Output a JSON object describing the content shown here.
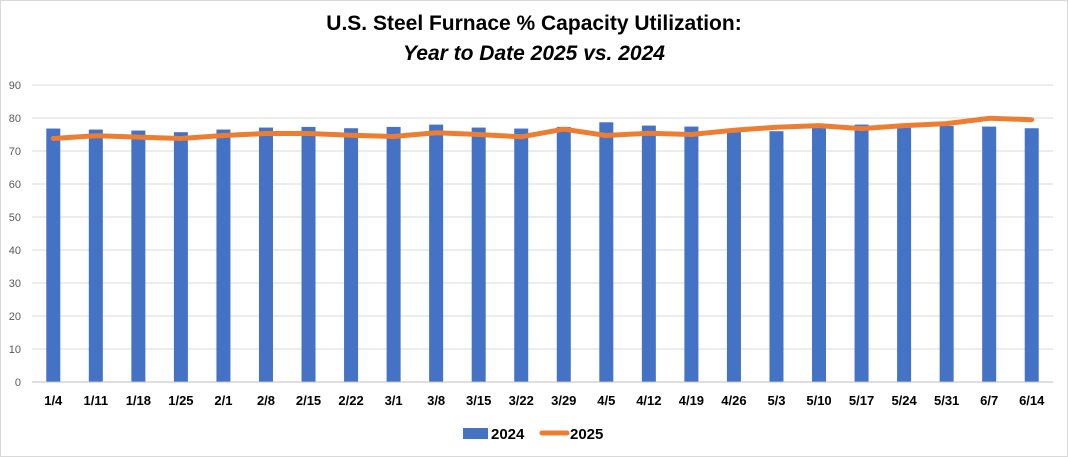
{
  "chart_data": {
    "type": "bar",
    "title": "U.S. Steel Furnace % Capacity Utilization:",
    "subtitle": "Year to Date 2025 vs. 2024",
    "xlabel": "",
    "ylabel": "",
    "ylim": [
      0,
      90
    ],
    "yticks": [
      "0",
      "10",
      "20",
      "30",
      "40",
      "50",
      "60",
      "70",
      "80",
      "90"
    ],
    "grid": true,
    "legend": "bottom",
    "categories": [
      "1/4",
      "1/11",
      "1/18",
      "1/25",
      "2/1",
      "2/8",
      "2/15",
      "2/22",
      "3/1",
      "3/8",
      "3/15",
      "3/22",
      "3/29",
      "4/5",
      "4/12",
      "4/19",
      "4/26",
      "5/3",
      "5/10",
      "5/17",
      "5/24",
      "5/31",
      "6/7",
      "6/14"
    ],
    "series": [
      {
        "name": "2024",
        "kind": "bar",
        "color": "#4472c4",
        "values": [
          76.8,
          76.5,
          76.2,
          75.7,
          76.5,
          77.1,
          77.3,
          76.9,
          77.3,
          78.0,
          77.1,
          76.8,
          77.3,
          78.7,
          77.7,
          77.4,
          76.0,
          76.0,
          77.0,
          78.0,
          77.1,
          77.6,
          77.4,
          76.9
        ]
      },
      {
        "name": "2025",
        "kind": "line",
        "color": "#ed7d31",
        "values": [
          73.8,
          74.6,
          74.2,
          73.8,
          74.7,
          75.3,
          75.3,
          74.8,
          74.4,
          75.5,
          75.0,
          74.3,
          76.6,
          74.7,
          75.4,
          75.0,
          76.3,
          77.2,
          77.7,
          76.8,
          77.7,
          78.3,
          79.9,
          79.5
        ]
      }
    ]
  }
}
